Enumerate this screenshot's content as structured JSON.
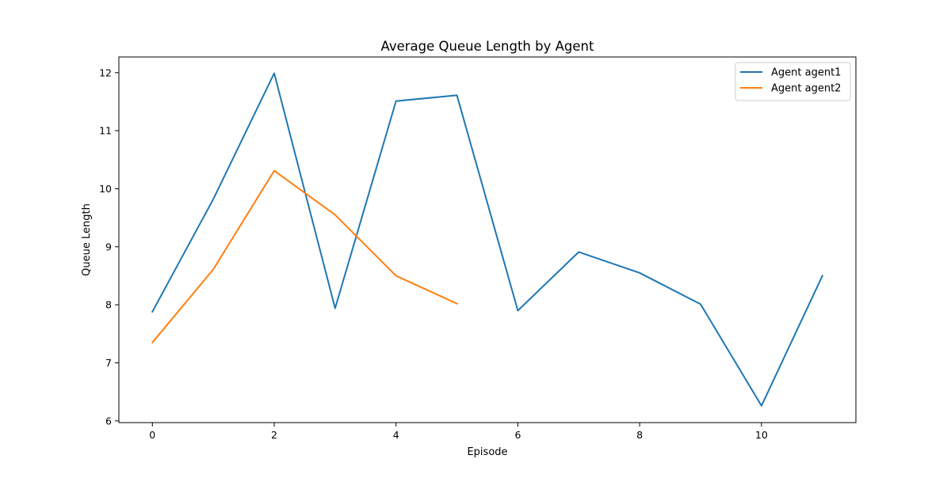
{
  "chart_data": {
    "type": "line",
    "title": "Average Queue Length by Agent",
    "xlabel": "Episode",
    "ylabel": "Queue Length",
    "xlim": [
      -0.55,
      11.55
    ],
    "ylim": [
      5.97,
      12.27
    ],
    "xticks": [
      0,
      2,
      4,
      6,
      8,
      10
    ],
    "yticks": [
      6,
      7,
      8,
      9,
      10,
      11,
      12
    ],
    "grid": false,
    "legend_position": "top-right",
    "series": [
      {
        "name": "Agent agent1",
        "color": "#1f77b4",
        "x": [
          0,
          1,
          2,
          3,
          4,
          5,
          6,
          7,
          8,
          9,
          10,
          11
        ],
        "values": [
          7.88,
          9.82,
          11.99,
          7.94,
          11.51,
          11.61,
          7.9,
          8.91,
          8.55,
          8.01,
          6.26,
          8.5
        ]
      },
      {
        "name": "Agent agent2",
        "color": "#ff7f0e",
        "x": [
          0,
          1,
          2,
          3,
          4,
          5
        ],
        "values": [
          7.35,
          8.61,
          10.31,
          9.55,
          8.5,
          8.02
        ]
      }
    ]
  }
}
